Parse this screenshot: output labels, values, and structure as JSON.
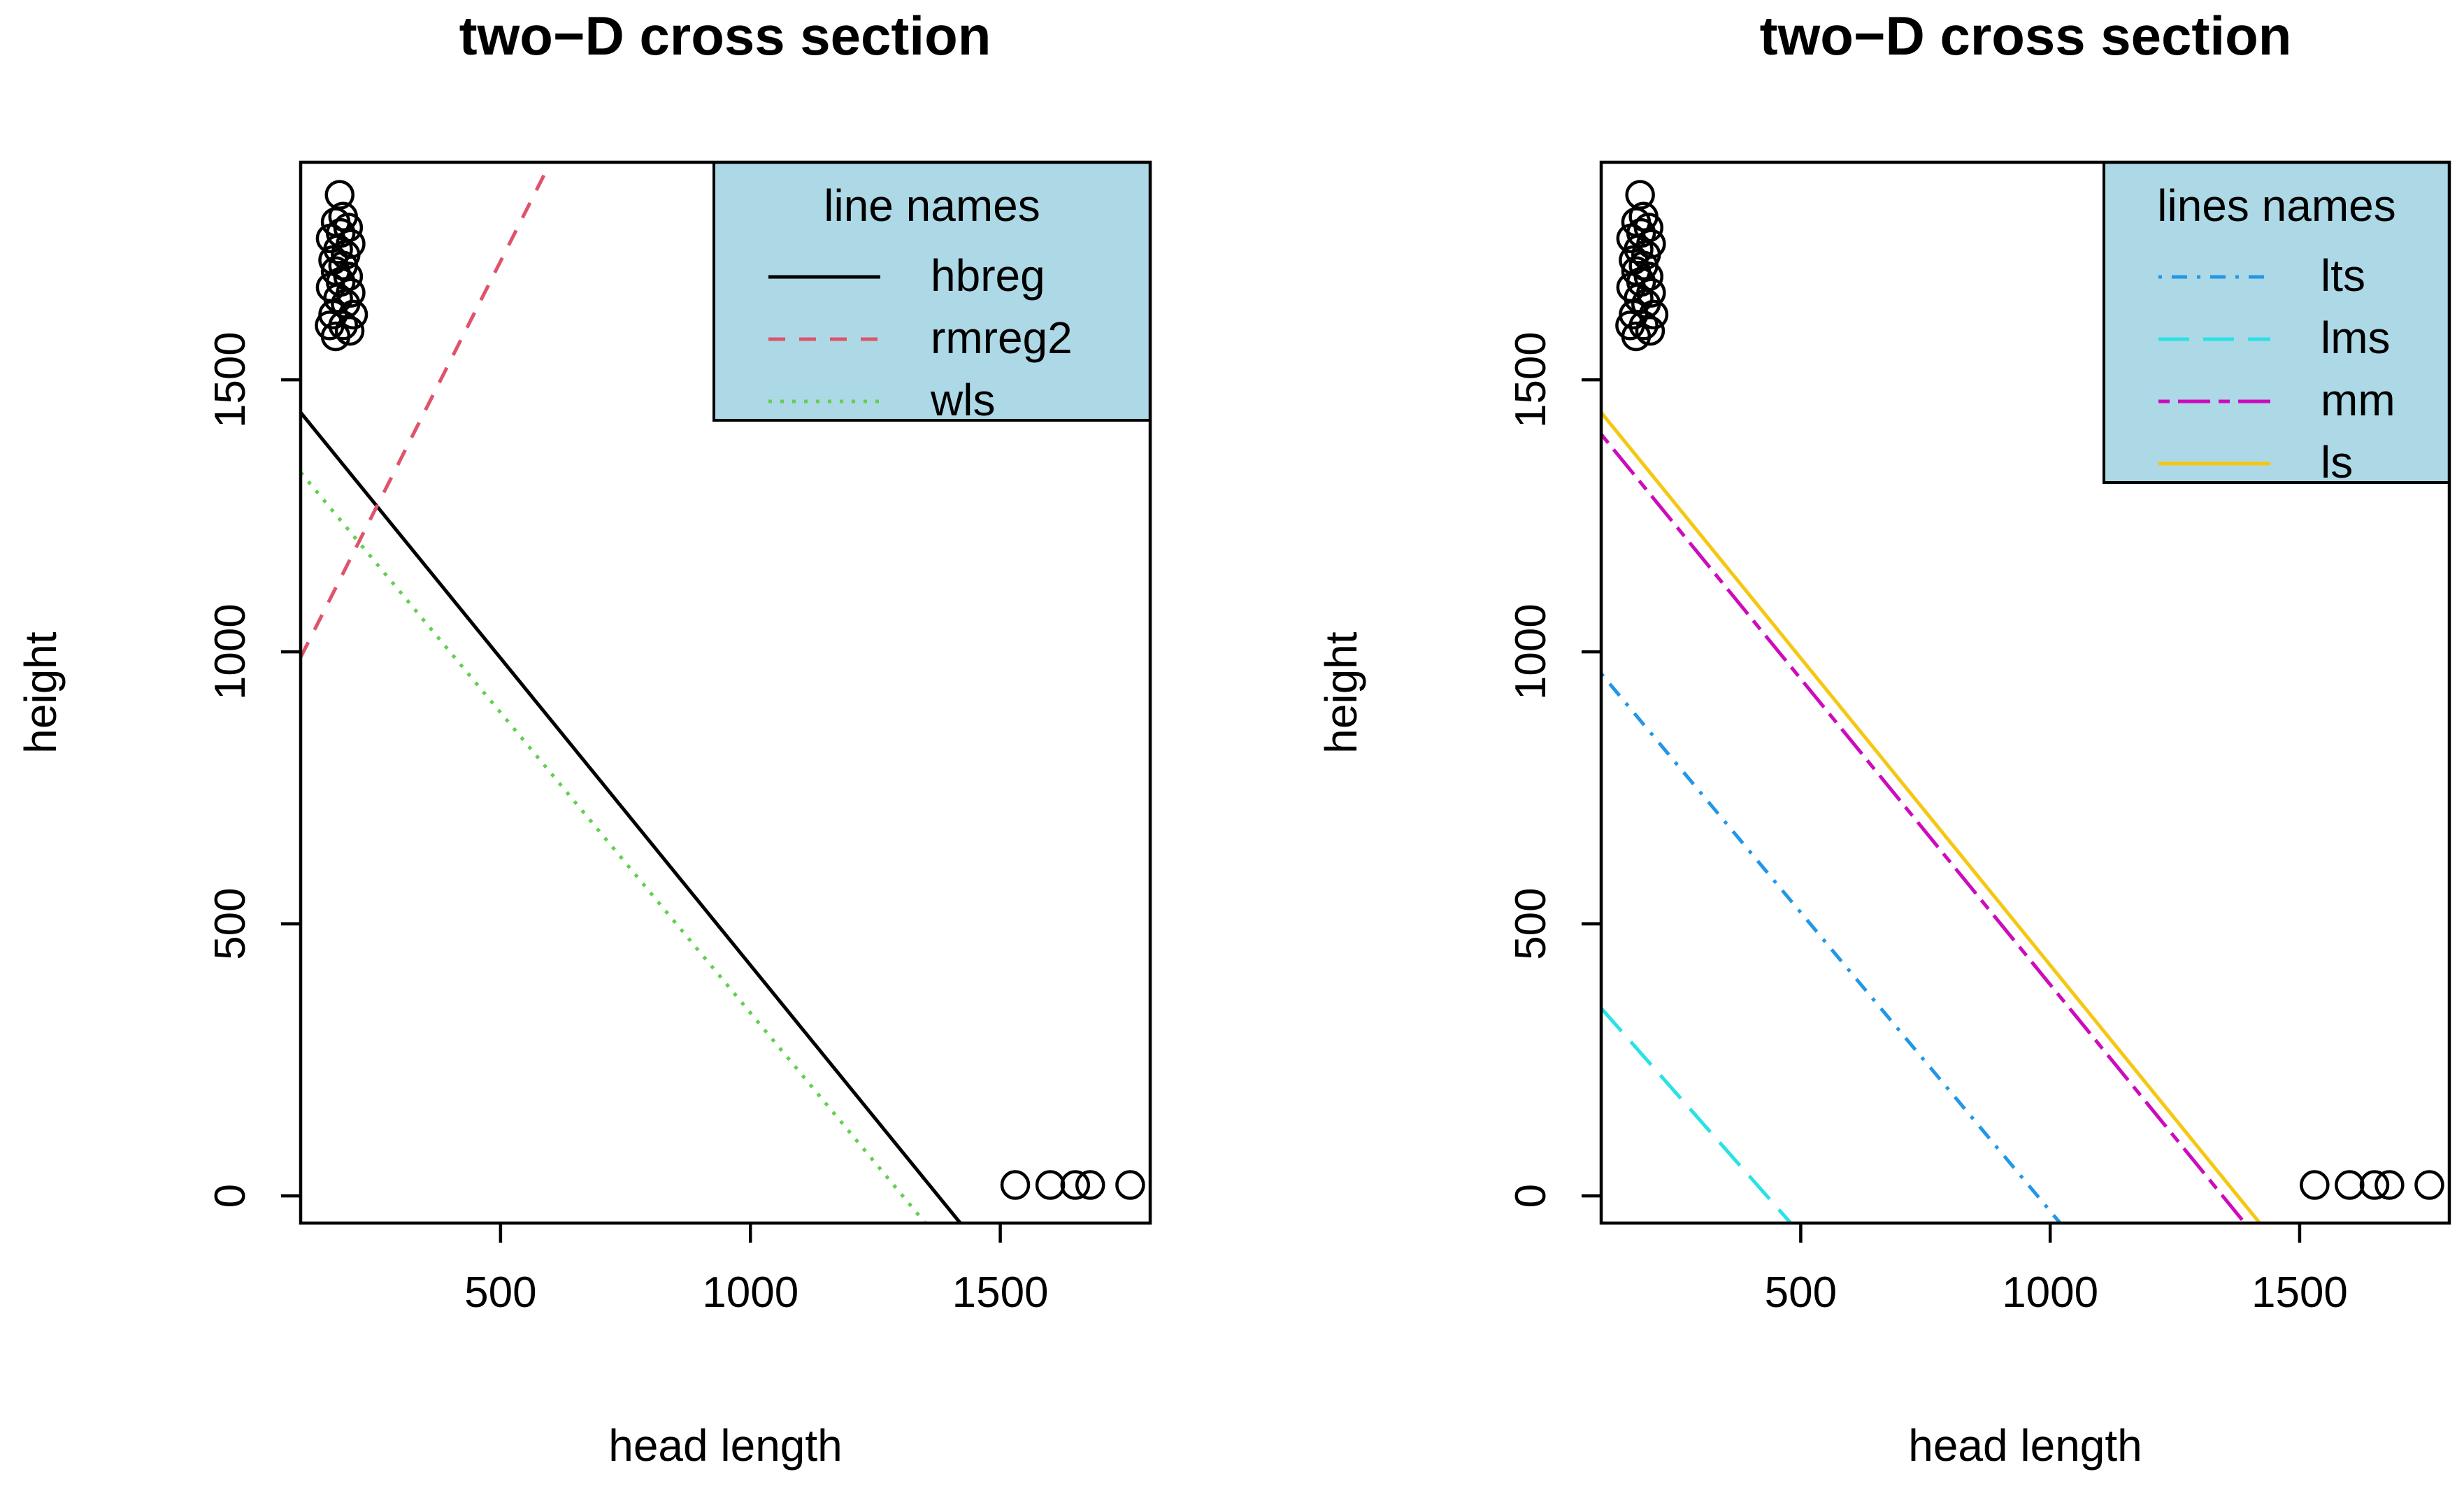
{
  "chart_data": [
    {
      "type": "scatter",
      "title": "two−D cross section",
      "xlabel": "head length",
      "ylabel": "height",
      "xlim": [
        100,
        1800
      ],
      "ylim": [
        -50,
        1900
      ],
      "xticks": [
        500,
        1000,
        1500
      ],
      "yticks": [
        0,
        500,
        1000,
        1500
      ],
      "points": [
        {
          "x": 170,
          "y": 1580
        },
        {
          "x": 185,
          "y": 1600
        },
        {
          "x": 165,
          "y": 1620
        },
        {
          "x": 190,
          "y": 1640
        },
        {
          "x": 175,
          "y": 1650
        },
        {
          "x": 200,
          "y": 1660
        },
        {
          "x": 160,
          "y": 1670
        },
        {
          "x": 180,
          "y": 1680
        },
        {
          "x": 195,
          "y": 1690
        },
        {
          "x": 170,
          "y": 1700
        },
        {
          "x": 185,
          "y": 1710
        },
        {
          "x": 165,
          "y": 1720
        },
        {
          "x": 190,
          "y": 1730
        },
        {
          "x": 175,
          "y": 1740
        },
        {
          "x": 200,
          "y": 1750
        },
        {
          "x": 160,
          "y": 1760
        },
        {
          "x": 180,
          "y": 1770
        },
        {
          "x": 195,
          "y": 1780
        },
        {
          "x": 170,
          "y": 1790
        },
        {
          "x": 185,
          "y": 1800
        },
        {
          "x": 178,
          "y": 1840
        },
        {
          "x": 205,
          "y": 1620
        },
        {
          "x": 158,
          "y": 1600
        },
        {
          "x": 198,
          "y": 1590
        },
        {
          "x": 1530,
          "y": 20
        },
        {
          "x": 1600,
          "y": 20
        },
        {
          "x": 1650,
          "y": 20
        },
        {
          "x": 1680,
          "y": 20
        },
        {
          "x": 1760,
          "y": 20
        }
      ],
      "lines": [
        {
          "name": "hbreg",
          "color": "#000000",
          "dash": "solid",
          "p1": [
            100,
            1440
          ],
          "p2": [
            1420,
            -50
          ]
        },
        {
          "name": "rmreg2",
          "color": "#DF536B",
          "dash": "dashed",
          "p1": [
            100,
            990
          ],
          "p2": [
            600,
            1900
          ]
        },
        {
          "name": "wls",
          "color": "#61D04F",
          "dash": "dotted",
          "p1": [
            100,
            1330
          ],
          "p2": [
            1350,
            -50
          ]
        }
      ],
      "legend": {
        "title": "line names",
        "position": "top-right",
        "background": "#ADD8E6",
        "entries": [
          "hbreg",
          "rmreg2",
          "wls"
        ]
      }
    },
    {
      "type": "scatter",
      "title": "two−D cross section",
      "xlabel": "head length",
      "ylabel": "height",
      "xlim": [
        100,
        1800
      ],
      "ylim": [
        -50,
        1900
      ],
      "xticks": [
        500,
        1000,
        1500
      ],
      "yticks": [
        0,
        500,
        1000,
        1500
      ],
      "points": [
        {
          "x": 170,
          "y": 1580
        },
        {
          "x": 185,
          "y": 1600
        },
        {
          "x": 165,
          "y": 1620
        },
        {
          "x": 190,
          "y": 1640
        },
        {
          "x": 175,
          "y": 1650
        },
        {
          "x": 200,
          "y": 1660
        },
        {
          "x": 160,
          "y": 1670
        },
        {
          "x": 180,
          "y": 1680
        },
        {
          "x": 195,
          "y": 1690
        },
        {
          "x": 170,
          "y": 1700
        },
        {
          "x": 185,
          "y": 1710
        },
        {
          "x": 165,
          "y": 1720
        },
        {
          "x": 190,
          "y": 1730
        },
        {
          "x": 175,
          "y": 1740
        },
        {
          "x": 200,
          "y": 1750
        },
        {
          "x": 160,
          "y": 1760
        },
        {
          "x": 180,
          "y": 1770
        },
        {
          "x": 195,
          "y": 1780
        },
        {
          "x": 170,
          "y": 1790
        },
        {
          "x": 185,
          "y": 1800
        },
        {
          "x": 178,
          "y": 1840
        },
        {
          "x": 205,
          "y": 1620
        },
        {
          "x": 158,
          "y": 1600
        },
        {
          "x": 198,
          "y": 1590
        },
        {
          "x": 1530,
          "y": 20
        },
        {
          "x": 1600,
          "y": 20
        },
        {
          "x": 1650,
          "y": 20
        },
        {
          "x": 1680,
          "y": 20
        },
        {
          "x": 1760,
          "y": 20
        }
      ],
      "lines": [
        {
          "name": "lts",
          "color": "#2297E6",
          "dash": "dotdash",
          "p1": [
            100,
            960
          ],
          "p2": [
            1020,
            -50
          ]
        },
        {
          "name": "lms",
          "color": "#28E2E5",
          "dash": "longdash",
          "p1": [
            100,
            345
          ],
          "p2": [
            480,
            -50
          ]
        },
        {
          "name": "mm",
          "color": "#CD0BBC",
          "dash": "twodash",
          "p1": [
            100,
            1400
          ],
          "p2": [
            1390,
            -50
          ]
        },
        {
          "name": "ls",
          "color": "#F5C710",
          "dash": "solid",
          "p1": [
            100,
            1440
          ],
          "p2": [
            1420,
            -50
          ]
        }
      ],
      "legend": {
        "title": "lines names",
        "position": "top-right",
        "background": "#ADD8E6",
        "entries": [
          "lts",
          "lms",
          "mm",
          "ls"
        ]
      }
    }
  ]
}
